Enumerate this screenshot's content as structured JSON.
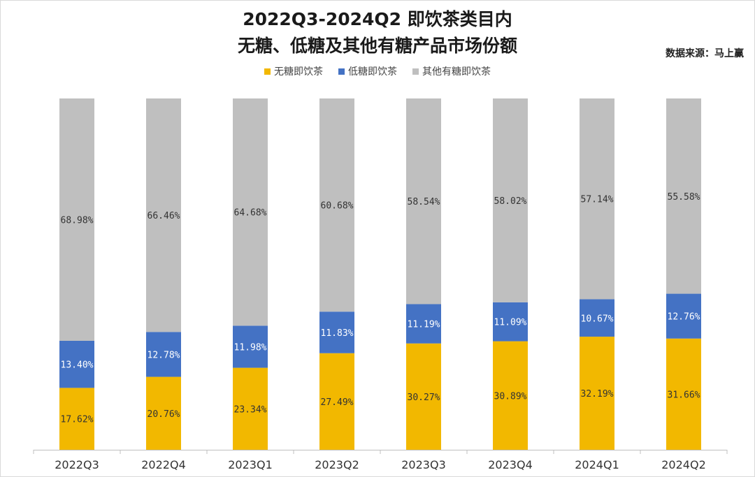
{
  "chart_data": {
    "type": "bar",
    "stacked": true,
    "percent": true,
    "title": "2022Q3-2024Q2 即饮茶类目内",
    "subtitle": "无糖、低糖及其他有糖产品市场份额",
    "source": "数据来源：马上赢",
    "categories": [
      "2022Q3",
      "2022Q4",
      "2023Q1",
      "2023Q2",
      "2023Q3",
      "2023Q4",
      "2024Q1",
      "2024Q2"
    ],
    "series": [
      {
        "name": "无糖即饮茶",
        "color": "#f2b800",
        "label_color": "#333333",
        "values": [
          17.62,
          20.76,
          23.34,
          27.49,
          30.27,
          30.89,
          32.19,
          31.66
        ],
        "labels": [
          "17.62%",
          "20.76%",
          "23.34%",
          "27.49%",
          "30.27%",
          "30.89%",
          "32.19%",
          "31.66%"
        ]
      },
      {
        "name": "低糖即饮茶",
        "color": "#4472c4",
        "label_color": "#ffffff",
        "values": [
          13.4,
          12.78,
          11.98,
          11.83,
          11.19,
          11.09,
          10.67,
          12.76
        ],
        "labels": [
          "13.40%",
          "12.78%",
          "11.98%",
          "11.83%",
          "11.19%",
          "11.09%",
          "10.67%",
          "12.76%"
        ]
      },
      {
        "name": "其他有糖即饮茶",
        "color": "#bfbfbf",
        "label_color": "#333333",
        "values": [
          68.98,
          66.46,
          64.68,
          60.68,
          58.54,
          58.02,
          57.14,
          55.58
        ],
        "labels": [
          "68.98%",
          "66.46%",
          "64.68%",
          "60.68%",
          "58.54%",
          "58.02%",
          "57.14%",
          "55.58%"
        ]
      }
    ],
    "ylim": [
      0,
      100
    ],
    "grid": false,
    "legend_position": "top"
  }
}
